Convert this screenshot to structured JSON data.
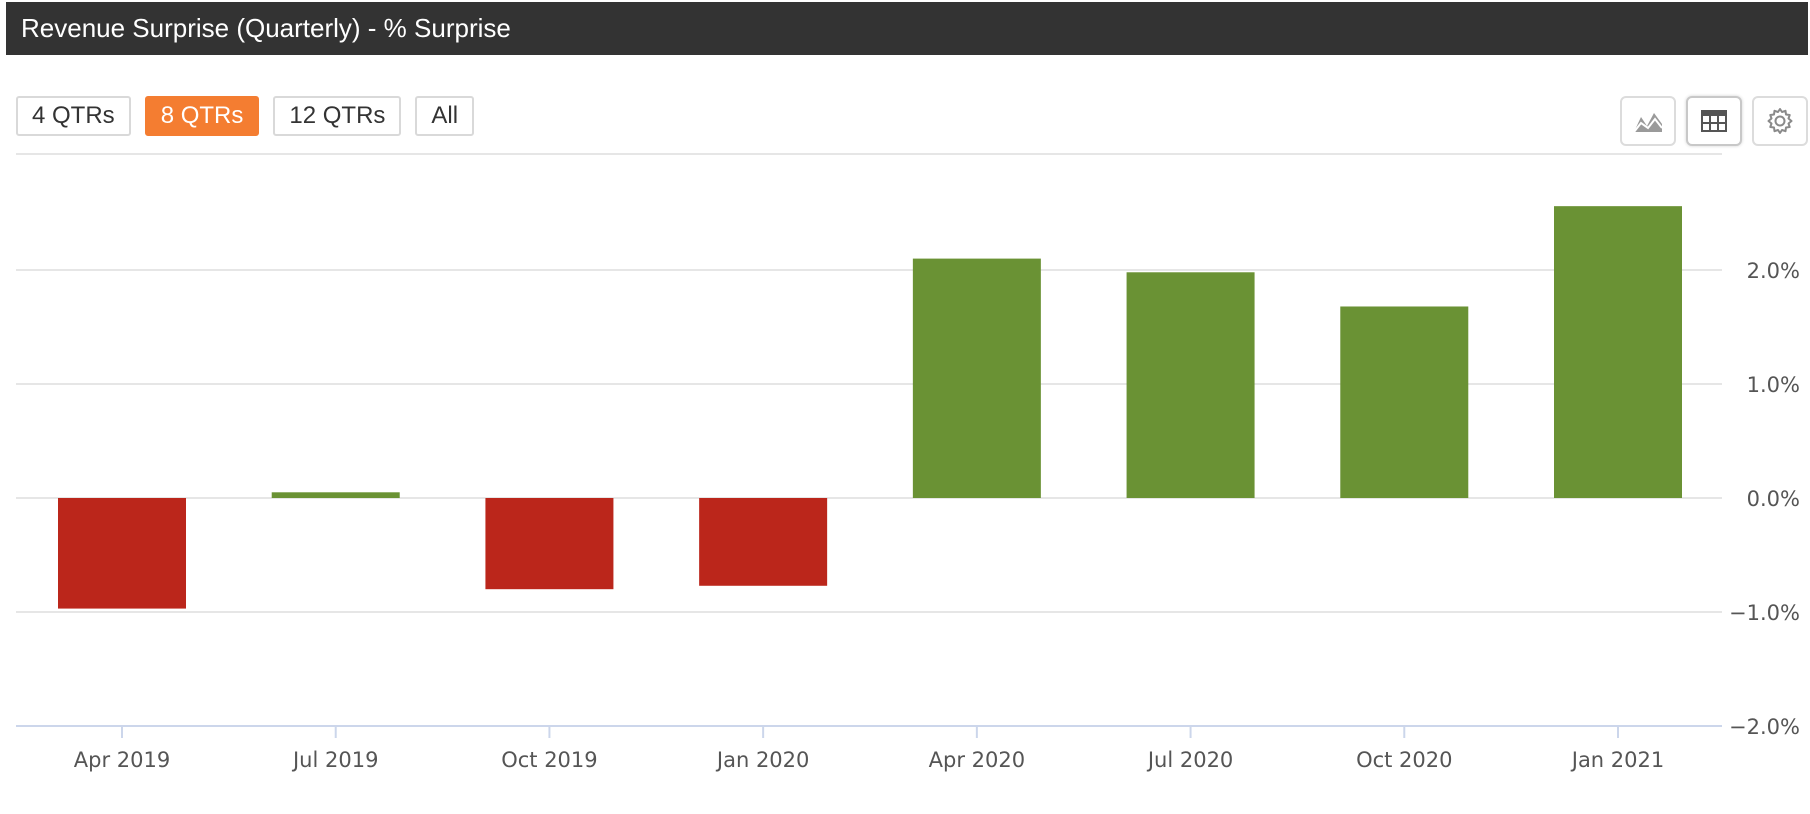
{
  "header": {
    "title": "Revenue Surprise (Quarterly) - % Surprise"
  },
  "range_buttons": [
    {
      "label": "4 QTRs",
      "active": false
    },
    {
      "label": "8 QTRs",
      "active": true
    },
    {
      "label": "12 QTRs",
      "active": false
    },
    {
      "label": "All",
      "active": false
    }
  ],
  "toolbar": {
    "icons": [
      "area-chart-icon",
      "table-icon",
      "gear-icon"
    ]
  },
  "colors": {
    "accent": "#f47d31",
    "positive": "#6a9234",
    "negative": "#bb261b",
    "header_bg": "#333333"
  },
  "chart_data": {
    "type": "bar",
    "title": "Revenue Surprise (Quarterly) - % Surprise",
    "xlabel": "",
    "ylabel": "",
    "categories": [
      "Apr 2019",
      "Jul 2019",
      "Oct 2019",
      "Jan 2020",
      "Apr 2020",
      "Jul 2020",
      "Oct 2020",
      "Jan 2021"
    ],
    "values": [
      -0.97,
      0.05,
      -0.8,
      -0.77,
      2.1,
      1.98,
      1.68,
      2.56
    ],
    "ylim": [
      -2.0,
      3.0
    ],
    "yticks": [
      -2.0,
      -1.0,
      0.0,
      1.0,
      2.0
    ],
    "ytick_labels": [
      "−2.0%",
      "−1.0%",
      "0.0%",
      "1.0%",
      "2.0%"
    ],
    "grid": true,
    "y_axis_side": "right"
  }
}
